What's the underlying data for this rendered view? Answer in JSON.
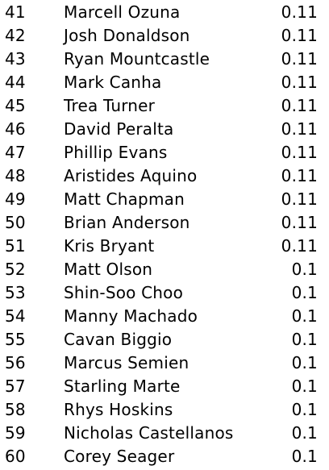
{
  "rows": [
    {
      "rank": "41",
      "name": "Marcell Ozuna",
      "value": "0.11"
    },
    {
      "rank": "42",
      "name": "Josh Donaldson",
      "value": "0.11"
    },
    {
      "rank": "43",
      "name": "Ryan Mountcastle",
      "value": "0.11"
    },
    {
      "rank": "44",
      "name": "Mark Canha",
      "value": "0.11"
    },
    {
      "rank": "45",
      "name": "Trea Turner",
      "value": "0.11"
    },
    {
      "rank": "46",
      "name": "David Peralta",
      "value": "0.11"
    },
    {
      "rank": "47",
      "name": "Phillip Evans",
      "value": "0.11"
    },
    {
      "rank": "48",
      "name": "Aristides Aquino",
      "value": "0.11"
    },
    {
      "rank": "49",
      "name": "Matt Chapman",
      "value": "0.11"
    },
    {
      "rank": "50",
      "name": "Brian Anderson",
      "value": "0.11"
    },
    {
      "rank": "51",
      "name": "Kris Bryant",
      "value": "0.11"
    },
    {
      "rank": "52",
      "name": "Matt Olson",
      "value": "0.1"
    },
    {
      "rank": "53",
      "name": "Shin-Soo Choo",
      "value": "0.1"
    },
    {
      "rank": "54",
      "name": "Manny Machado",
      "value": "0.1"
    },
    {
      "rank": "55",
      "name": "Cavan Biggio",
      "value": "0.1"
    },
    {
      "rank": "56",
      "name": "Marcus Semien",
      "value": "0.1"
    },
    {
      "rank": "57",
      "name": "Starling Marte",
      "value": "0.1"
    },
    {
      "rank": "58",
      "name": "Rhys Hoskins",
      "value": "0.1"
    },
    {
      "rank": "59",
      "name": "Nicholas Castellanos",
      "value": "0.1"
    },
    {
      "rank": "60",
      "name": "Corey Seager",
      "value": "0.1"
    }
  ]
}
